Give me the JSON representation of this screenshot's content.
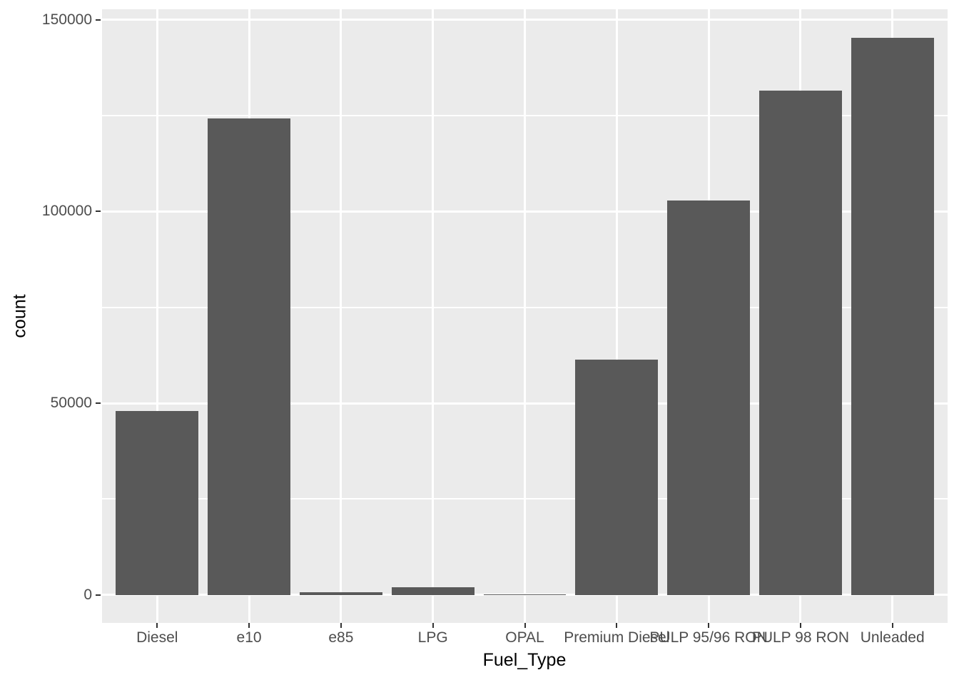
{
  "figure": {
    "background": "#FFFFFF",
    "panel_background": "#EBEBEB",
    "gridline_color": "#FFFFFF",
    "bar_fill": "#595959",
    "axis_text_color": "#4D4D4D",
    "axis_title_color": "#000000",
    "tick_mark_color": "#333333"
  },
  "chart_data": {
    "type": "bar",
    "title": "",
    "xlabel": "Fuel_Type",
    "ylabel": "count",
    "categories": [
      "Diesel",
      "e10",
      "e85",
      "LPG",
      "OPAL",
      "Premium Diesel",
      "PULP 95/96 RON",
      "PULP 98 RON",
      "Unleaded"
    ],
    "values": [
      48000,
      124300,
      650,
      2050,
      200,
      61400,
      102900,
      131500,
      145300
    ],
    "ylim": [
      -7300,
      152700
    ],
    "y_major_ticks": [
      0,
      50000,
      100000,
      150000
    ],
    "y_tick_labels": [
      "0",
      "50000",
      "100000",
      "150000"
    ],
    "y_minor_ticks": [
      25000,
      75000,
      125000
    ],
    "bar_width_fraction": 0.9,
    "grid": true,
    "legend": "none",
    "style": "ggplot2-theme-grey"
  }
}
